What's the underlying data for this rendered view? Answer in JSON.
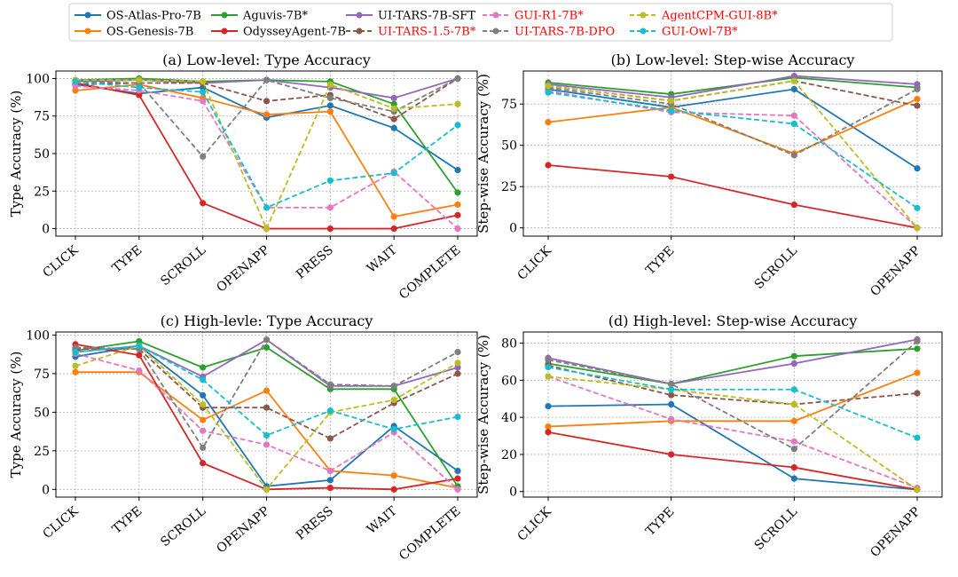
{
  "colors": {
    "OS-Atlas-Pro-7B": "#1f77b4",
    "OS-Genesis-7B": "#ff7f0e",
    "Aguvis-7B*": "#2ca02c",
    "OdysseyAgent-7B": "#d62728",
    "UI-TARS-7B-SFT": "#9467bd",
    "UI-TARS-1.5-7B*": "#8c564b",
    "GUI-R1-7B*": "#e377c2",
    "UI-TARS-7B-DPO": "#7f7f7f",
    "AgentCPM-GUI-8B*": "#bcbd22",
    "GUI-Owl-7B*": "#17becf"
  },
  "legend": {
    "entries": [
      {
        "name": "OS-Atlas-Pro-7B",
        "dashed": false,
        "label_color": "#000000"
      },
      {
        "name": "OS-Genesis-7B",
        "dashed": false,
        "label_color": "#000000"
      },
      {
        "name": "Aguvis-7B*",
        "dashed": false,
        "label_color": "#000000"
      },
      {
        "name": "OdysseyAgent-7B",
        "dashed": false,
        "label_color": "#000000"
      },
      {
        "name": "UI-TARS-7B-SFT",
        "dashed": false,
        "label_color": "#000000"
      },
      {
        "name": "UI-TARS-1.5-7B*",
        "dashed": true,
        "label_color": "#ff0000"
      },
      {
        "name": "GUI-R1-7B*",
        "dashed": true,
        "label_color": "#ff0000"
      },
      {
        "name": "UI-TARS-7B-DPO",
        "dashed": true,
        "label_color": "#ff0000"
      },
      {
        "name": "AgentCPM-GUI-8B*",
        "dashed": true,
        "label_color": "#ff0000"
      },
      {
        "name": "GUI-Owl-7B*",
        "dashed": true,
        "label_color": "#ff0000"
      }
    ]
  },
  "chart_data": [
    {
      "type": "line",
      "title": "(a) Low-level: Type Accuracy",
      "ylabel": "Type Accuracy (%)",
      "ylim": [
        -5,
        105
      ],
      "yticks": [
        0,
        25,
        50,
        75,
        100
      ],
      "grid": true,
      "categories": [
        "CLICK",
        "TYPE",
        "SCROLL",
        "OPENAPP",
        "PRESS",
        "WAIT",
        "COMPLETE"
      ],
      "series": [
        {
          "name": "OS-Atlas-Pro-7B",
          "values": [
            96,
            90,
            94,
            74,
            82,
            67,
            39
          ]
        },
        {
          "name": "OS-Genesis-7B",
          "values": [
            92,
            96,
            87,
            76,
            78,
            8,
            16
          ]
        },
        {
          "name": "Aguvis-7B*",
          "values": [
            99,
            100,
            98,
            99,
            98,
            83,
            24
          ]
        },
        {
          "name": "OdysseyAgent-7B",
          "values": [
            97,
            89,
            17,
            0,
            0,
            0,
            9
          ]
        },
        {
          "name": "UI-TARS-7B-SFT",
          "values": [
            98,
            99,
            97,
            99,
            94,
            87,
            100
          ]
        },
        {
          "name": "UI-TARS-1.5-7B*",
          "values": [
            96,
            97,
            97,
            85,
            89,
            73,
            100
          ]
        },
        {
          "name": "GUI-R1-7B*",
          "values": [
            95,
            92,
            85,
            14,
            14,
            38,
            0
          ]
        },
        {
          "name": "UI-TARS-7B-DPO",
          "values": [
            98,
            97,
            48,
            99,
            87,
            78,
            100
          ]
        },
        {
          "name": "AgentCPM-GUI-8B*",
          "values": [
            99,
            99,
            98,
            0,
            96,
            80,
            83
          ]
        },
        {
          "name": "GUI-Owl-7B*",
          "values": [
            98,
            94,
            91,
            14,
            32,
            37,
            69
          ]
        }
      ]
    },
    {
      "type": "line",
      "title": "(b) Low-level: Step-wise Accuracy",
      "ylabel": "Step-wise Accuracy (%)",
      "ylim": [
        -5,
        95
      ],
      "yticks": [
        0,
        25,
        50,
        75
      ],
      "grid": true,
      "categories": [
        "CLICK",
        "TYPE",
        "SCROLL",
        "OPENAPP"
      ],
      "series": [
        {
          "name": "OS-Atlas-Pro-7B",
          "values": [
            84,
            73,
            84,
            36
          ]
        },
        {
          "name": "OS-Genesis-7B",
          "values": [
            64,
            73,
            45,
            78
          ]
        },
        {
          "name": "Aguvis-7B*",
          "values": [
            88,
            81,
            91,
            85
          ]
        },
        {
          "name": "OdysseyAgent-7B",
          "values": [
            38,
            31,
            14,
            0
          ]
        },
        {
          "name": "UI-TARS-7B-SFT",
          "values": [
            87,
            79,
            92,
            87
          ]
        },
        {
          "name": "UI-TARS-1.5-7B*",
          "values": [
            86,
            77,
            89,
            74
          ]
        },
        {
          "name": "GUI-R1-7B*",
          "values": [
            83,
            70,
            68,
            0
          ]
        },
        {
          "name": "UI-TARS-7B-DPO",
          "values": [
            85,
            75,
            44,
            84
          ]
        },
        {
          "name": "AgentCPM-GUI-8B*",
          "values": [
            86,
            77,
            89,
            0
          ]
        },
        {
          "name": "GUI-Owl-7B*",
          "values": [
            82,
            71,
            63,
            12
          ]
        }
      ]
    },
    {
      "type": "line",
      "title": "(c) High-levle: Type Accuracy",
      "ylabel": "Type Accuracy (%)",
      "ylim": [
        -5,
        102
      ],
      "yticks": [
        0,
        25,
        50,
        75,
        100
      ],
      "grid": true,
      "categories": [
        "CLICK",
        "TYPE",
        "SCROLL",
        "OPENAPP",
        "PRESS",
        "WAIT",
        "COMPLETE"
      ],
      "series": [
        {
          "name": "OS-Atlas-Pro-7B",
          "values": [
            86,
            93,
            61,
            2,
            6,
            41,
            12
          ]
        },
        {
          "name": "OS-Genesis-7B",
          "values": [
            76,
            76,
            45,
            64,
            12,
            9,
            1
          ]
        },
        {
          "name": "Aguvis-7B*",
          "values": [
            90,
            96,
            79,
            92,
            65,
            65,
            2
          ]
        },
        {
          "name": "OdysseyAgent-7B",
          "values": [
            94,
            87,
            17,
            0,
            1,
            0,
            7
          ]
        },
        {
          "name": "UI-TARS-7B-SFT",
          "values": [
            89,
            93,
            73,
            97,
            67,
            67,
            79
          ]
        },
        {
          "name": "UI-TARS-1.5-7B*",
          "values": [
            91,
            91,
            53,
            53,
            33,
            56,
            75
          ]
        },
        {
          "name": "GUI-R1-7B*",
          "values": [
            88,
            77,
            38,
            29,
            12,
            37,
            0
          ]
        },
        {
          "name": "UI-TARS-7B-DPO",
          "values": [
            92,
            91,
            27,
            97,
            68,
            67,
            89
          ]
        },
        {
          "name": "AgentCPM-GUI-8B*",
          "values": [
            80,
            93,
            55,
            0,
            50,
            58,
            82
          ]
        },
        {
          "name": "GUI-Owl-7B*",
          "values": [
            89,
            93,
            71,
            35,
            51,
            39,
            47
          ]
        }
      ]
    },
    {
      "type": "line",
      "title": "(d) High-level: Step-wise Accuracy",
      "ylabel": "Step-wise Accuracy (%)",
      "ylim": [
        -3,
        86
      ],
      "yticks": [
        0,
        20,
        40,
        60,
        80
      ],
      "grid": true,
      "categories": [
        "CLICK",
        "TYPE",
        "SCROLL",
        "OPENAPP"
      ],
      "series": [
        {
          "name": "OS-Atlas-Pro-7B",
          "values": [
            46,
            47,
            7,
            1
          ]
        },
        {
          "name": "OS-Genesis-7B",
          "values": [
            35,
            38,
            38,
            64
          ]
        },
        {
          "name": "Aguvis-7B*",
          "values": [
            69,
            58,
            73,
            77
          ]
        },
        {
          "name": "OdysseyAgent-7B",
          "values": [
            32,
            20,
            13,
            1
          ]
        },
        {
          "name": "UI-TARS-7B-SFT",
          "values": [
            72,
            58,
            69,
            82
          ]
        },
        {
          "name": "UI-TARS-1.5-7B*",
          "values": [
            68,
            52,
            47,
            53
          ]
        },
        {
          "name": "GUI-R1-7B*",
          "values": [
            62,
            39,
            27,
            2
          ]
        },
        {
          "name": "UI-TARS-7B-DPO",
          "values": [
            71,
            58,
            23,
            81
          ]
        },
        {
          "name": "AgentCPM-GUI-8B*",
          "values": [
            62,
            55,
            47,
            1
          ]
        },
        {
          "name": "GUI-Owl-7B*",
          "values": [
            67,
            55,
            55,
            29
          ]
        }
      ]
    }
  ]
}
